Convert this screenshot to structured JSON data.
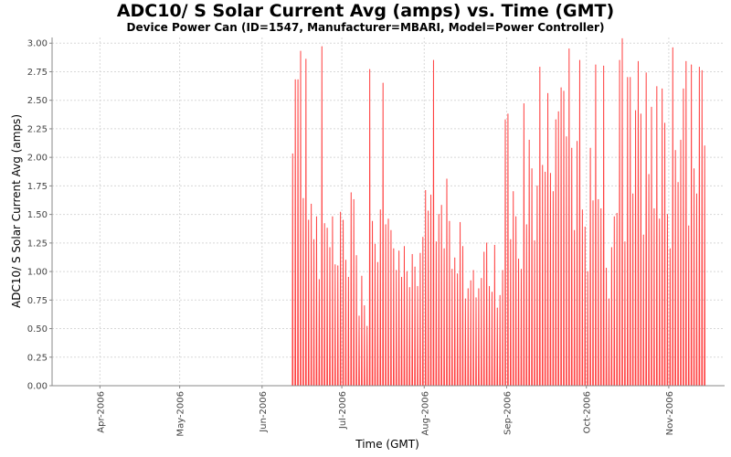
{
  "chart_data": {
    "type": "line",
    "title": "ADC10/ S Solar Current Avg (amps) vs. Time (GMT)",
    "subtitle": "Device Power Can (ID=1547, Manufacturer=MBARI, Model=Power Controller)",
    "xlabel": "Time (GMT)",
    "ylabel": "ADC10/ S Solar Current Avg (amps)",
    "xlim": [
      "2006-03-14",
      "2006-11-22"
    ],
    "ylim": [
      0,
      3.05
    ],
    "yticks": [
      "0.00",
      "0.25",
      "0.50",
      "0.75",
      "1.00",
      "1.25",
      "1.50",
      "1.75",
      "2.00",
      "2.25",
      "2.50",
      "2.75",
      "3.00"
    ],
    "xticks": [
      {
        "date": "2006-04-01",
        "label": "Apr-2006"
      },
      {
        "date": "2006-05-01",
        "label": "May-2006"
      },
      {
        "date": "2006-06-01",
        "label": "Jun-2006"
      },
      {
        "date": "2006-07-01",
        "label": "Jul-2006"
      },
      {
        "date": "2006-08-01",
        "label": "Aug-2006"
      },
      {
        "date": "2006-09-01",
        "label": "Sep-2006"
      },
      {
        "date": "2006-10-01",
        "label": "Oct-2006"
      },
      {
        "date": "2006-11-01",
        "label": "Nov-2006"
      }
    ],
    "grid": true,
    "series": [
      {
        "color": "#ff4040",
        "daily_peaks": [
          {
            "date": "2006-06-05",
            "value": 0.0
          },
          {
            "date": "2006-06-11",
            "value": 0.0
          },
          {
            "date": "2006-06-12",
            "value": 2.03
          },
          {
            "date": "2006-06-13",
            "value": 2.68
          },
          {
            "date": "2006-06-14",
            "value": 2.68
          },
          {
            "date": "2006-06-15",
            "value": 2.93
          },
          {
            "date": "2006-06-16",
            "value": 1.64
          },
          {
            "date": "2006-06-17",
            "value": 2.86
          },
          {
            "date": "2006-06-18",
            "value": 1.45
          },
          {
            "date": "2006-06-19",
            "value": 1.59
          },
          {
            "date": "2006-06-20",
            "value": 1.28
          },
          {
            "date": "2006-06-21",
            "value": 1.48
          },
          {
            "date": "2006-06-22",
            "value": 0.93
          },
          {
            "date": "2006-06-23",
            "value": 2.97
          },
          {
            "date": "2006-06-24",
            "value": 1.42
          },
          {
            "date": "2006-06-25",
            "value": 1.38
          },
          {
            "date": "2006-06-26",
            "value": 1.21
          },
          {
            "date": "2006-06-27",
            "value": 1.48
          },
          {
            "date": "2006-06-28",
            "value": 1.06
          },
          {
            "date": "2006-06-29",
            "value": 1.05
          },
          {
            "date": "2006-06-30",
            "value": 1.52
          },
          {
            "date": "2006-07-01",
            "value": 1.45
          },
          {
            "date": "2006-07-02",
            "value": 1.1
          },
          {
            "date": "2006-07-03",
            "value": 0.95
          },
          {
            "date": "2006-07-04",
            "value": 1.69
          },
          {
            "date": "2006-07-05",
            "value": 1.63
          },
          {
            "date": "2006-07-06",
            "value": 1.14
          },
          {
            "date": "2006-07-07",
            "value": 0.61
          },
          {
            "date": "2006-07-08",
            "value": 0.96
          },
          {
            "date": "2006-07-09",
            "value": 0.7
          },
          {
            "date": "2006-07-10",
            "value": 0.52
          },
          {
            "date": "2006-07-11",
            "value": 2.77
          },
          {
            "date": "2006-07-12",
            "value": 1.44
          },
          {
            "date": "2006-07-13",
            "value": 1.24
          },
          {
            "date": "2006-07-14",
            "value": 1.08
          },
          {
            "date": "2006-07-15",
            "value": 1.54
          },
          {
            "date": "2006-07-16",
            "value": 2.65
          },
          {
            "date": "2006-07-17",
            "value": 1.41
          },
          {
            "date": "2006-07-18",
            "value": 1.46
          },
          {
            "date": "2006-07-19",
            "value": 1.36
          },
          {
            "date": "2006-07-20",
            "value": 1.2
          },
          {
            "date": "2006-07-21",
            "value": 1.01
          },
          {
            "date": "2006-07-22",
            "value": 1.18
          },
          {
            "date": "2006-07-23",
            "value": 0.95
          },
          {
            "date": "2006-07-24",
            "value": 1.22
          },
          {
            "date": "2006-07-25",
            "value": 1.0
          },
          {
            "date": "2006-07-26",
            "value": 0.86
          },
          {
            "date": "2006-07-27",
            "value": 1.15
          },
          {
            "date": "2006-07-28",
            "value": 1.04
          },
          {
            "date": "2006-07-29",
            "value": 0.87
          },
          {
            "date": "2006-07-30",
            "value": 1.16
          },
          {
            "date": "2006-07-31",
            "value": 1.3
          },
          {
            "date": "2006-08-01",
            "value": 1.71
          },
          {
            "date": "2006-08-02",
            "value": 1.53
          },
          {
            "date": "2006-08-03",
            "value": 1.67
          },
          {
            "date": "2006-08-04",
            "value": 2.85
          },
          {
            "date": "2006-08-05",
            "value": 1.26
          },
          {
            "date": "2006-08-06",
            "value": 1.5
          },
          {
            "date": "2006-08-07",
            "value": 1.58
          },
          {
            "date": "2006-08-08",
            "value": 1.2
          },
          {
            "date": "2006-08-09",
            "value": 1.81
          },
          {
            "date": "2006-08-10",
            "value": 1.44
          },
          {
            "date": "2006-08-11",
            "value": 1.02
          },
          {
            "date": "2006-08-12",
            "value": 1.12
          },
          {
            "date": "2006-08-13",
            "value": 0.98
          },
          {
            "date": "2006-08-14",
            "value": 1.43
          },
          {
            "date": "2006-08-15",
            "value": 1.22
          },
          {
            "date": "2006-08-16",
            "value": 0.76
          },
          {
            "date": "2006-08-17",
            "value": 0.85
          },
          {
            "date": "2006-08-18",
            "value": 0.92
          },
          {
            "date": "2006-08-19",
            "value": 1.01
          },
          {
            "date": "2006-08-20",
            "value": 0.77
          },
          {
            "date": "2006-08-21",
            "value": 0.85
          },
          {
            "date": "2006-08-22",
            "value": 0.94
          },
          {
            "date": "2006-08-23",
            "value": 1.17
          },
          {
            "date": "2006-08-24",
            "value": 1.25
          },
          {
            "date": "2006-08-25",
            "value": 0.87
          },
          {
            "date": "2006-08-26",
            "value": 0.82
          },
          {
            "date": "2006-08-27",
            "value": 1.23
          },
          {
            "date": "2006-08-28",
            "value": 0.68
          },
          {
            "date": "2006-08-29",
            "value": 0.79
          },
          {
            "date": "2006-08-30",
            "value": 1.01
          },
          {
            "date": "2006-08-31",
            "value": 2.33
          },
          {
            "date": "2006-09-01",
            "value": 2.38
          },
          {
            "date": "2006-09-02",
            "value": 1.28
          },
          {
            "date": "2006-09-03",
            "value": 1.7
          },
          {
            "date": "2006-09-04",
            "value": 1.48
          },
          {
            "date": "2006-09-05",
            "value": 1.11
          },
          {
            "date": "2006-09-06",
            "value": 1.02
          },
          {
            "date": "2006-09-07",
            "value": 2.47
          },
          {
            "date": "2006-09-08",
            "value": 1.41
          },
          {
            "date": "2006-09-09",
            "value": 2.15
          },
          {
            "date": "2006-09-10",
            "value": 1.9
          },
          {
            "date": "2006-09-11",
            "value": 1.27
          },
          {
            "date": "2006-09-12",
            "value": 1.75
          },
          {
            "date": "2006-09-13",
            "value": 2.79
          },
          {
            "date": "2006-09-14",
            "value": 1.93
          },
          {
            "date": "2006-09-15",
            "value": 1.87
          },
          {
            "date": "2006-09-16",
            "value": 2.56
          },
          {
            "date": "2006-09-17",
            "value": 1.86
          },
          {
            "date": "2006-09-18",
            "value": 1.7
          },
          {
            "date": "2006-09-19",
            "value": 2.33
          },
          {
            "date": "2006-09-20",
            "value": 2.4
          },
          {
            "date": "2006-09-21",
            "value": 2.61
          },
          {
            "date": "2006-09-22",
            "value": 2.58
          },
          {
            "date": "2006-09-23",
            "value": 2.18
          },
          {
            "date": "2006-09-24",
            "value": 2.95
          },
          {
            "date": "2006-09-25",
            "value": 2.08
          },
          {
            "date": "2006-09-26",
            "value": 1.36
          },
          {
            "date": "2006-09-27",
            "value": 2.14
          },
          {
            "date": "2006-09-28",
            "value": 2.85
          },
          {
            "date": "2006-09-29",
            "value": 1.54
          },
          {
            "date": "2006-09-30",
            "value": 1.39
          },
          {
            "date": "2006-10-01",
            "value": 1.0
          },
          {
            "date": "2006-10-02",
            "value": 2.08
          },
          {
            "date": "2006-10-03",
            "value": 1.62
          },
          {
            "date": "2006-10-04",
            "value": 2.81
          },
          {
            "date": "2006-10-05",
            "value": 1.63
          },
          {
            "date": "2006-10-06",
            "value": 1.55
          },
          {
            "date": "2006-10-07",
            "value": 2.8
          },
          {
            "date": "2006-10-08",
            "value": 1.03
          },
          {
            "date": "2006-10-09",
            "value": 0.76
          },
          {
            "date": "2006-10-10",
            "value": 1.21
          },
          {
            "date": "2006-10-11",
            "value": 1.48
          },
          {
            "date": "2006-10-12",
            "value": 1.51
          },
          {
            "date": "2006-10-13",
            "value": 2.85
          },
          {
            "date": "2006-10-14",
            "value": 3.04
          },
          {
            "date": "2006-10-15",
            "value": 1.26
          },
          {
            "date": "2006-10-16",
            "value": 2.7
          },
          {
            "date": "2006-10-17",
            "value": 2.7
          },
          {
            "date": "2006-10-18",
            "value": 1.68
          },
          {
            "date": "2006-10-19",
            "value": 2.41
          },
          {
            "date": "2006-10-20",
            "value": 2.84
          },
          {
            "date": "2006-10-21",
            "value": 2.38
          },
          {
            "date": "2006-10-22",
            "value": 1.32
          },
          {
            "date": "2006-10-23",
            "value": 2.74
          },
          {
            "date": "2006-10-24",
            "value": 1.85
          },
          {
            "date": "2006-10-25",
            "value": 2.44
          },
          {
            "date": "2006-10-26",
            "value": 1.55
          },
          {
            "date": "2006-10-27",
            "value": 2.62
          },
          {
            "date": "2006-10-28",
            "value": 1.46
          },
          {
            "date": "2006-10-29",
            "value": 2.6
          },
          {
            "date": "2006-10-30",
            "value": 2.3
          },
          {
            "date": "2006-10-31",
            "value": 1.5
          },
          {
            "date": "2006-11-01",
            "value": 1.2
          },
          {
            "date": "2006-11-02",
            "value": 2.96
          },
          {
            "date": "2006-11-03",
            "value": 2.06
          },
          {
            "date": "2006-11-04",
            "value": 1.78
          },
          {
            "date": "2006-11-05",
            "value": 2.15
          },
          {
            "date": "2006-11-06",
            "value": 2.6
          },
          {
            "date": "2006-11-07",
            "value": 2.84
          },
          {
            "date": "2006-11-08",
            "value": 1.4
          },
          {
            "date": "2006-11-09",
            "value": 2.81
          },
          {
            "date": "2006-11-10",
            "value": 1.9
          },
          {
            "date": "2006-11-11",
            "value": 1.68
          },
          {
            "date": "2006-11-12",
            "value": 2.79
          },
          {
            "date": "2006-11-13",
            "value": 2.76
          },
          {
            "date": "2006-11-14",
            "value": 2.1
          }
        ]
      }
    ]
  }
}
